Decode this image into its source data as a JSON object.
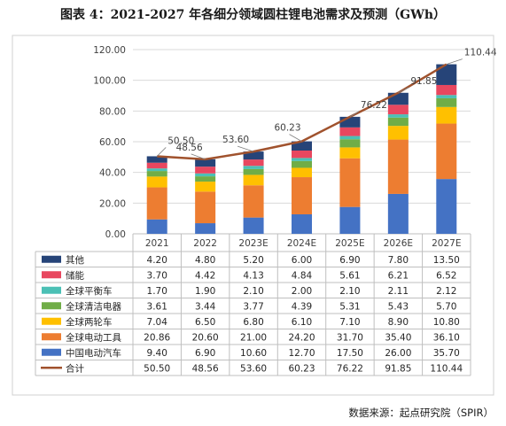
{
  "title": "图表 4：2021-2027 年各细分领域圆柱锂电池需求及预测（GWh）",
  "source": "数据来源：起点研究院（SPIR）",
  "chart_data": {
    "type": "bar",
    "stacked": true,
    "categories": [
      "2021",
      "2022",
      "2023E",
      "2024E",
      "2025E",
      "2026E",
      "2027E"
    ],
    "ylim": [
      0,
      120
    ],
    "yticks": [
      "0.00",
      "20.00",
      "40.00",
      "60.00",
      "80.00",
      "100.00",
      "120.00"
    ],
    "grid": true,
    "series": [
      {
        "name": "中国电动汽车",
        "color": "#4472c4",
        "values": [
          9.4,
          6.9,
          10.6,
          12.7,
          17.5,
          26.0,
          35.7
        ],
        "labels": [
          "9.40",
          "6.90",
          "10.60",
          "12.70",
          "17.50",
          "26.00",
          "35.70"
        ]
      },
      {
        "name": "全球电动工具",
        "color": "#ed7d31",
        "values": [
          20.86,
          20.6,
          21.0,
          24.2,
          31.7,
          35.4,
          36.1
        ],
        "labels": [
          "20.86",
          "20.60",
          "21.00",
          "24.20",
          "31.70",
          "35.40",
          "36.10"
        ]
      },
      {
        "name": "全球两轮车",
        "color": "#ffc000",
        "values": [
          7.04,
          6.5,
          6.8,
          6.1,
          7.1,
          8.9,
          10.8
        ],
        "labels": [
          "7.04",
          "6.50",
          "6.80",
          "6.10",
          "7.10",
          "8.90",
          "10.80"
        ]
      },
      {
        "name": "全球清洁电器",
        "color": "#70ad47",
        "values": [
          3.61,
          3.44,
          3.77,
          4.39,
          5.31,
          5.43,
          5.7
        ],
        "labels": [
          "3.61",
          "3.44",
          "3.77",
          "4.39",
          "5.31",
          "5.43",
          "5.70"
        ]
      },
      {
        "name": "全球平衡车",
        "color": "#4bc0b5",
        "values": [
          1.7,
          1.9,
          2.1,
          2.0,
          2.1,
          2.11,
          2.12
        ],
        "labels": [
          "1.70",
          "1.90",
          "2.10",
          "2.00",
          "2.10",
          "2.11",
          "2.12"
        ]
      },
      {
        "name": "储能",
        "color": "#e8475f",
        "values": [
          3.7,
          4.42,
          4.13,
          4.84,
          5.61,
          6.21,
          6.52
        ],
        "labels": [
          "3.70",
          "4.42",
          "4.13",
          "4.84",
          "5.61",
          "6.21",
          "6.52"
        ]
      },
      {
        "name": "其他",
        "color": "#264478",
        "values": [
          4.2,
          4.8,
          5.2,
          6.0,
          6.9,
          7.8,
          13.5
        ],
        "labels": [
          "4.20",
          "4.80",
          "5.20",
          "6.00",
          "6.90",
          "7.80",
          "13.50"
        ]
      }
    ],
    "total": {
      "name": "合计",
      "type": "line",
      "color": "#a0522d",
      "values": [
        50.5,
        48.56,
        53.6,
        60.23,
        76.22,
        91.85,
        110.44
      ],
      "labels": [
        "50.50",
        "48.56",
        "53.60",
        "60.23",
        "76.22",
        "91.85",
        "110.44"
      ]
    },
    "table_row_order": [
      "其他",
      "储能",
      "全球平衡车",
      "全球清洁电器",
      "全球两轮车",
      "全球电动工具",
      "中国电动汽车",
      "合计"
    ]
  }
}
